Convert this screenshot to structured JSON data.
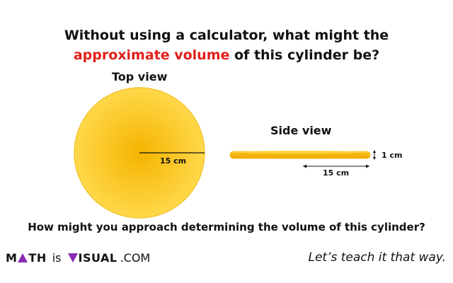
{
  "question": {
    "line1": "Without using a calculator, what might the",
    "highlight": "approximate volume",
    "line2_rest": " of this cylinder be?"
  },
  "top_view": {
    "label": "Top view",
    "radius_label": "15 cm"
  },
  "side_view": {
    "label": "Side view",
    "width_label": "15 cm",
    "height_label": "1 cm"
  },
  "bottom_question": "How might you approach determining the volume of this cylinder?",
  "footer": {
    "brand_m": "M",
    "brand_th": "TH",
    "brand_is": "is",
    "brand_isual": "ISUAL",
    "brand_com": ".COM",
    "tagline": "Let’s teach it that way."
  },
  "colors": {
    "highlight": "#e0201a",
    "disc_center": "#f5b400",
    "disc_edge": "#ffd84a",
    "brand_purple": "#8a2bb5"
  }
}
